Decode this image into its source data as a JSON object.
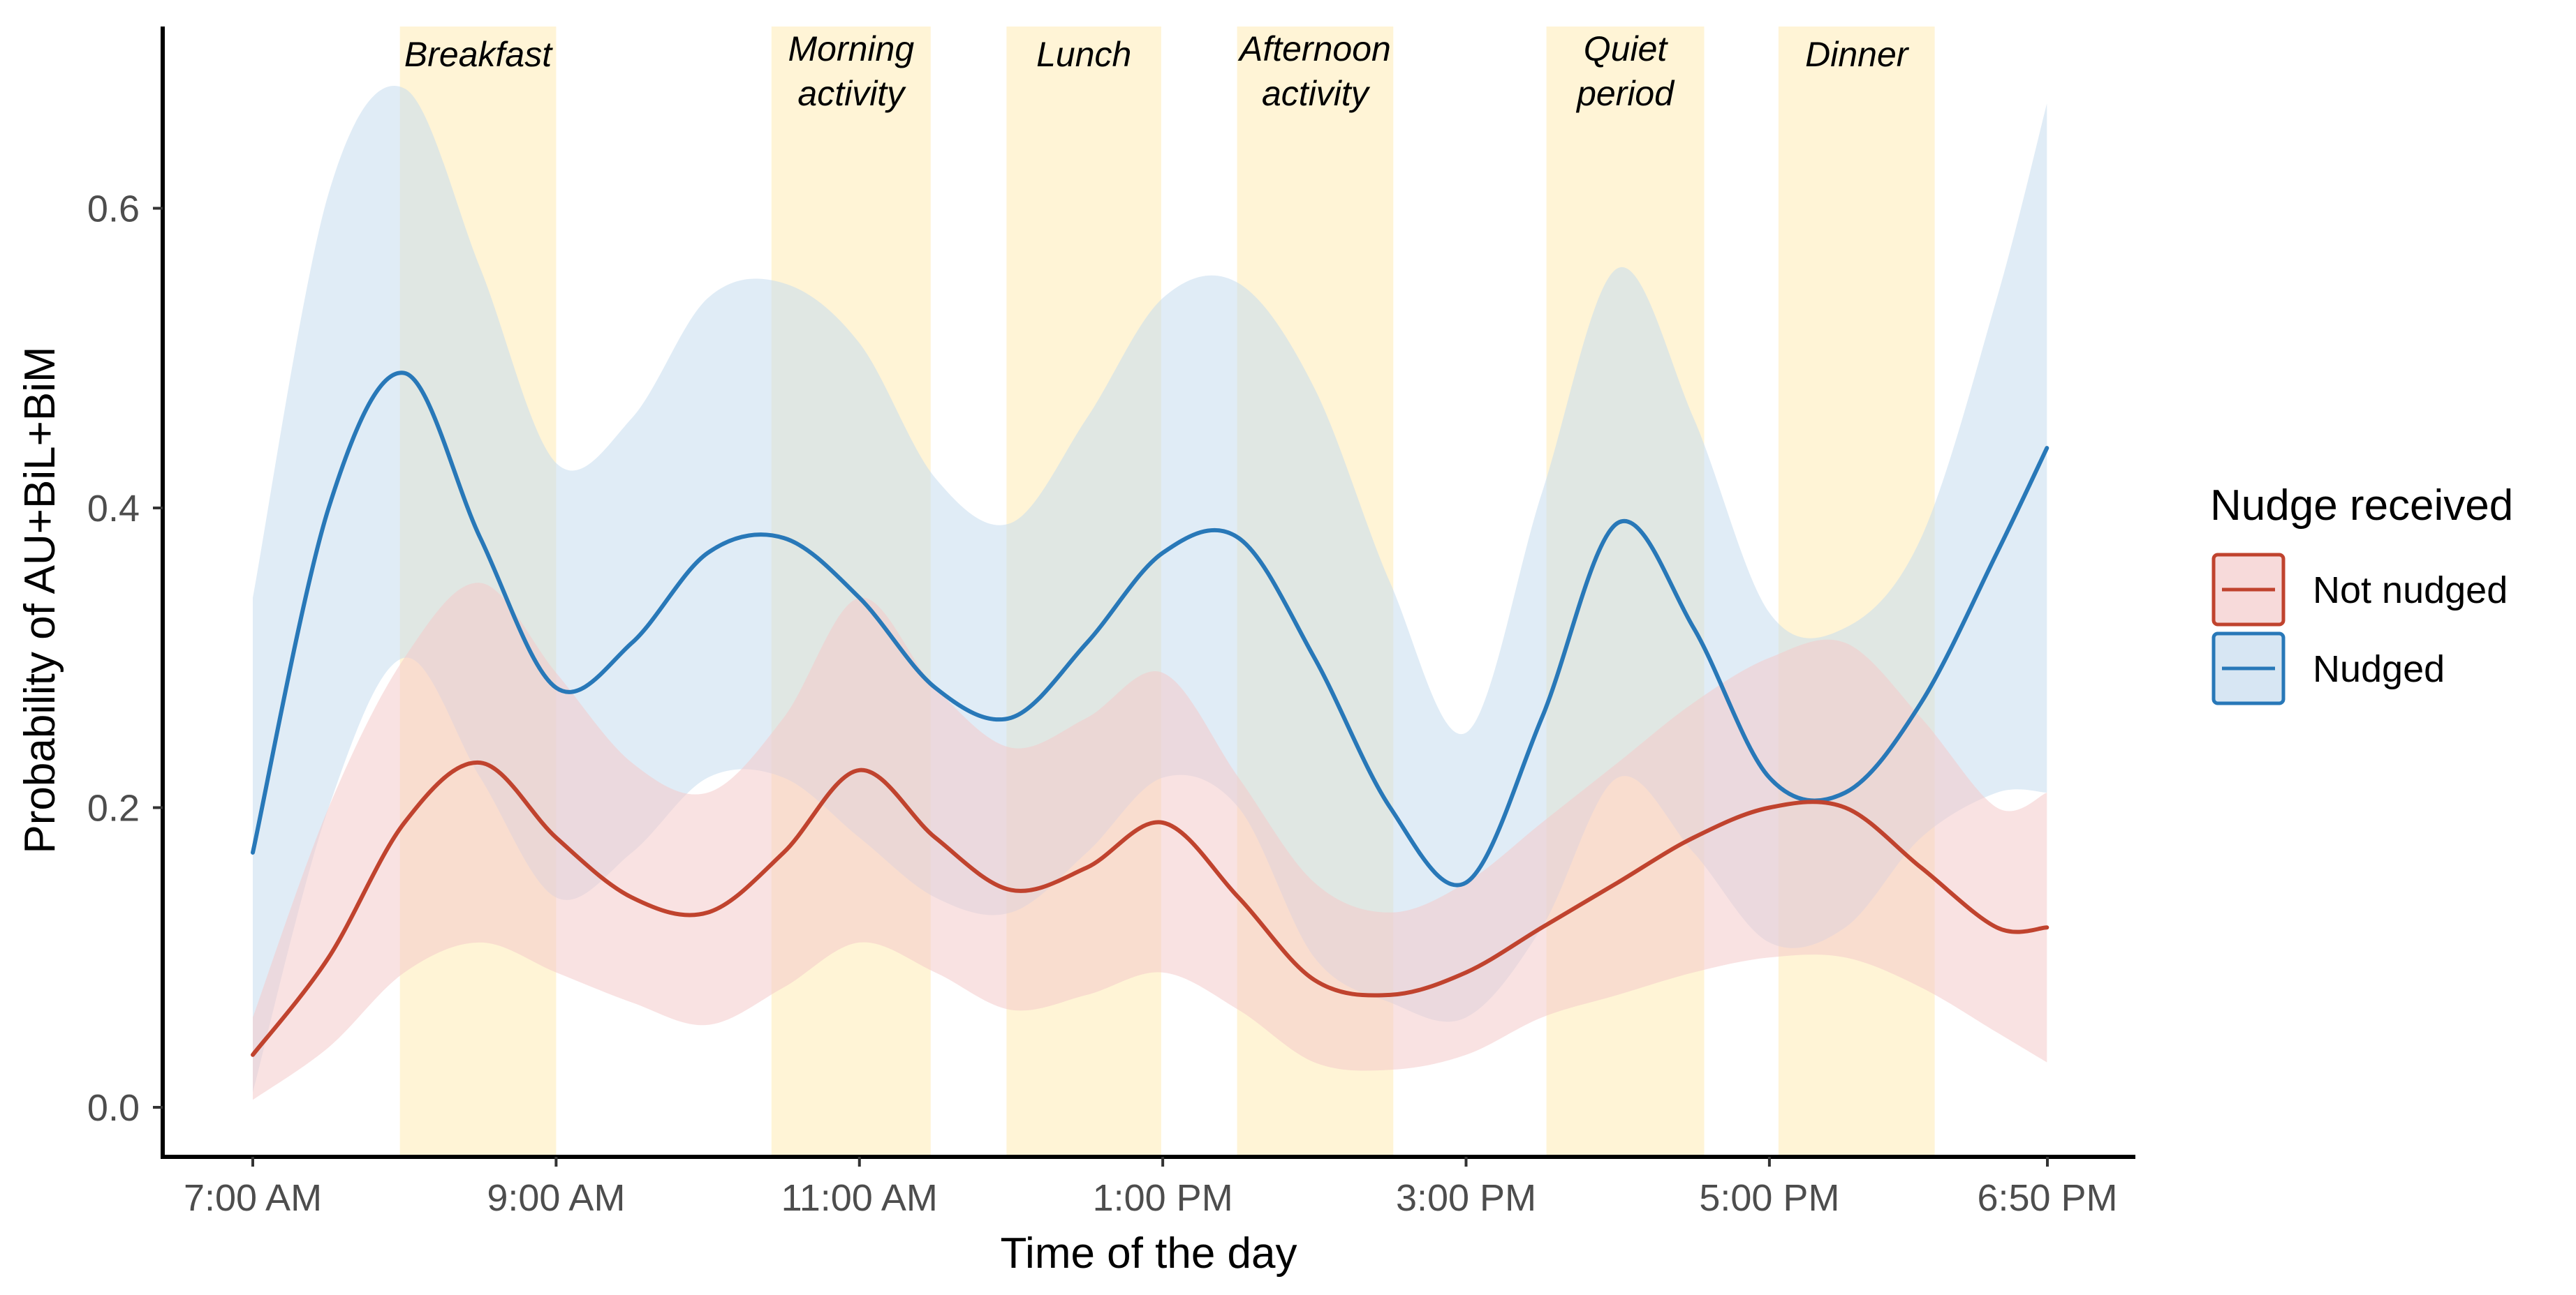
{
  "chart_data": {
    "type": "line",
    "title": "",
    "xlabel": "Time of the day",
    "ylabel": "Probability of AU+BiL+BiM",
    "xlim": [
      7.0,
      18.833
    ],
    "ylim": [
      -0.03,
      0.72
    ],
    "x_ticks": [
      {
        "value": 7.0,
        "label": "7:00 AM"
      },
      {
        "value": 9.0,
        "label": "9:00 AM"
      },
      {
        "value": 11.0,
        "label": "11:00 AM"
      },
      {
        "value": 13.0,
        "label": "1:00 PM"
      },
      {
        "value": 15.0,
        "label": "3:00 PM"
      },
      {
        "value": 17.0,
        "label": "5:00 PM"
      },
      {
        "value": 18.833,
        "label": "6:50 PM"
      }
    ],
    "y_ticks": [
      {
        "value": 0.0,
        "label": "0.0"
      },
      {
        "value": 0.2,
        "label": "0.2"
      },
      {
        "value": 0.4,
        "label": "0.4"
      },
      {
        "value": 0.6,
        "label": "0.6"
      }
    ],
    "periods": [
      {
        "label": "Breakfast",
        "start": 7.97,
        "end": 9.0
      },
      {
        "label": "Morning activity",
        "start": 10.42,
        "end": 11.47
      },
      {
        "label": "Lunch",
        "start": 11.97,
        "end": 12.99
      },
      {
        "label": "Afternoon activity",
        "start": 13.49,
        "end": 14.52
      },
      {
        "label": "Quiet period",
        "start": 15.53,
        "end": 16.57
      },
      {
        "label": "Dinner",
        "start": 17.06,
        "end": 18.09
      }
    ],
    "period_color": "#fff4d6",
    "series": [
      {
        "name": "Nudged",
        "color": "#2878b8",
        "fill": "#c6dcee",
        "x": [
          7.0,
          7.5,
          8.0,
          8.5,
          9.0,
          9.5,
          10.0,
          10.5,
          11.0,
          11.5,
          12.0,
          12.5,
          13.0,
          13.5,
          14.0,
          14.5,
          15.0,
          15.5,
          16.0,
          16.5,
          17.0,
          17.5,
          18.0,
          18.5,
          18.83
        ],
        "y": [
          0.17,
          0.4,
          0.49,
          0.38,
          0.28,
          0.31,
          0.37,
          0.38,
          0.34,
          0.28,
          0.26,
          0.31,
          0.37,
          0.38,
          0.3,
          0.2,
          0.15,
          0.26,
          0.39,
          0.32,
          0.22,
          0.21,
          0.27,
          0.37,
          0.44
        ],
        "lower": [
          0.01,
          0.2,
          0.3,
          0.22,
          0.14,
          0.17,
          0.22,
          0.22,
          0.18,
          0.14,
          0.13,
          0.17,
          0.22,
          0.2,
          0.1,
          0.07,
          0.06,
          0.12,
          0.22,
          0.17,
          0.11,
          0.12,
          0.18,
          0.21,
          0.21
        ],
        "upper": [
          0.34,
          0.61,
          0.68,
          0.56,
          0.43,
          0.46,
          0.54,
          0.55,
          0.51,
          0.42,
          0.39,
          0.46,
          0.54,
          0.55,
          0.48,
          0.35,
          0.25,
          0.41,
          0.56,
          0.46,
          0.33,
          0.32,
          0.38,
          0.54,
          0.67
        ]
      },
      {
        "name": "Not nudged",
        "color": "#c0432e",
        "fill": "#f4cbcb",
        "x": [
          7.0,
          7.5,
          8.0,
          8.5,
          9.0,
          9.5,
          10.0,
          10.5,
          11.0,
          11.5,
          12.0,
          12.5,
          13.0,
          13.5,
          14.0,
          14.5,
          15.0,
          15.5,
          16.0,
          16.5,
          17.0,
          17.5,
          18.0,
          18.5,
          18.83
        ],
        "y": [
          0.035,
          0.1,
          0.19,
          0.23,
          0.18,
          0.14,
          0.13,
          0.17,
          0.225,
          0.18,
          0.145,
          0.16,
          0.19,
          0.14,
          0.085,
          0.075,
          0.09,
          0.12,
          0.15,
          0.18,
          0.2,
          0.2,
          0.16,
          0.12,
          0.12
        ],
        "lower": [
          0.005,
          0.04,
          0.09,
          0.11,
          0.09,
          0.07,
          0.055,
          0.08,
          0.11,
          0.09,
          0.065,
          0.075,
          0.09,
          0.065,
          0.03,
          0.025,
          0.035,
          0.06,
          0.075,
          0.09,
          0.1,
          0.1,
          0.08,
          0.05,
          0.03
        ],
        "upper": [
          0.06,
          0.2,
          0.3,
          0.35,
          0.29,
          0.23,
          0.21,
          0.26,
          0.34,
          0.28,
          0.24,
          0.26,
          0.29,
          0.22,
          0.15,
          0.13,
          0.15,
          0.19,
          0.23,
          0.27,
          0.3,
          0.31,
          0.26,
          0.2,
          0.21
        ]
      }
    ],
    "legend": {
      "title": "Nudge received",
      "position": "right",
      "entries": [
        {
          "label": "Not nudged",
          "color": "#c0432e",
          "fill": "#f4cbcb"
        },
        {
          "label": "Nudged",
          "color": "#2878b8",
          "fill": "#c6dcee"
        }
      ]
    },
    "grid": false
  }
}
